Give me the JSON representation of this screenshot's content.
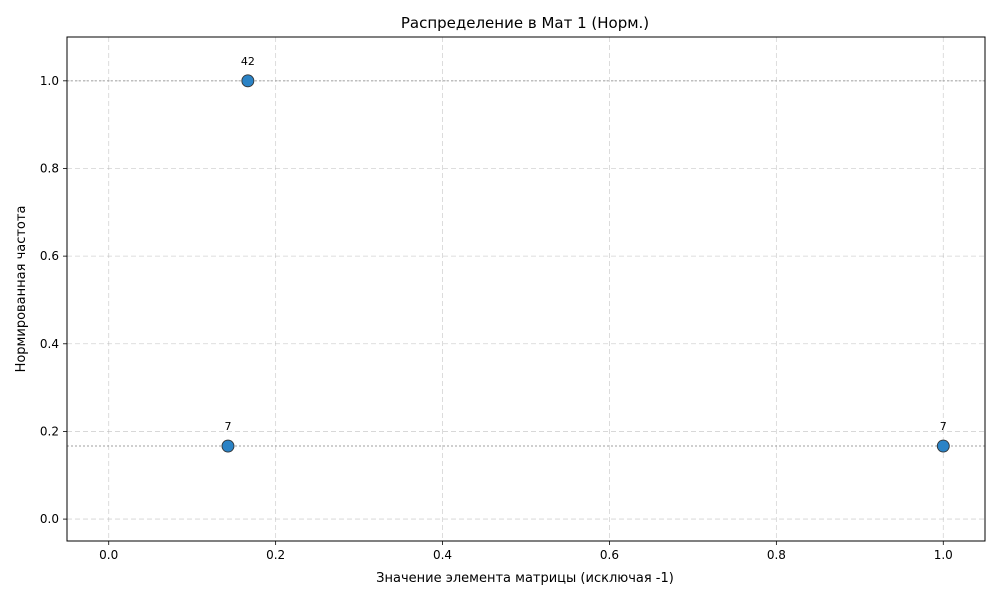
{
  "chart_data": {
    "type": "scatter",
    "title": "Распределение в Мат 1 (Норм.)",
    "xlabel": "Значение элемента матрицы (исключая -1)",
    "ylabel": "Нормированная частота",
    "xlim": [
      -0.05,
      1.05
    ],
    "ylim": [
      -0.05,
      1.1
    ],
    "xticks": [
      0.0,
      0.2,
      0.4,
      0.6,
      0.8,
      1.0
    ],
    "xtick_labels": [
      "0.0",
      "0.2",
      "0.4",
      "0.6",
      "0.8",
      "1.0"
    ],
    "yticks": [
      0.0,
      0.2,
      0.4,
      0.6,
      0.8,
      1.0
    ],
    "ytick_labels": [
      "0.0",
      "0.2",
      "0.4",
      "0.6",
      "0.8",
      "1.0"
    ],
    "grid": true,
    "reference_lines_y": [
      1.0,
      0.1667
    ],
    "marker_color": "#2b83c6",
    "points": [
      {
        "x": 0.1429,
        "y": 0.1667,
        "label": "7"
      },
      {
        "x": 0.1667,
        "y": 1.0,
        "label": "42"
      },
      {
        "x": 1.0,
        "y": 0.1667,
        "label": "7"
      }
    ]
  }
}
